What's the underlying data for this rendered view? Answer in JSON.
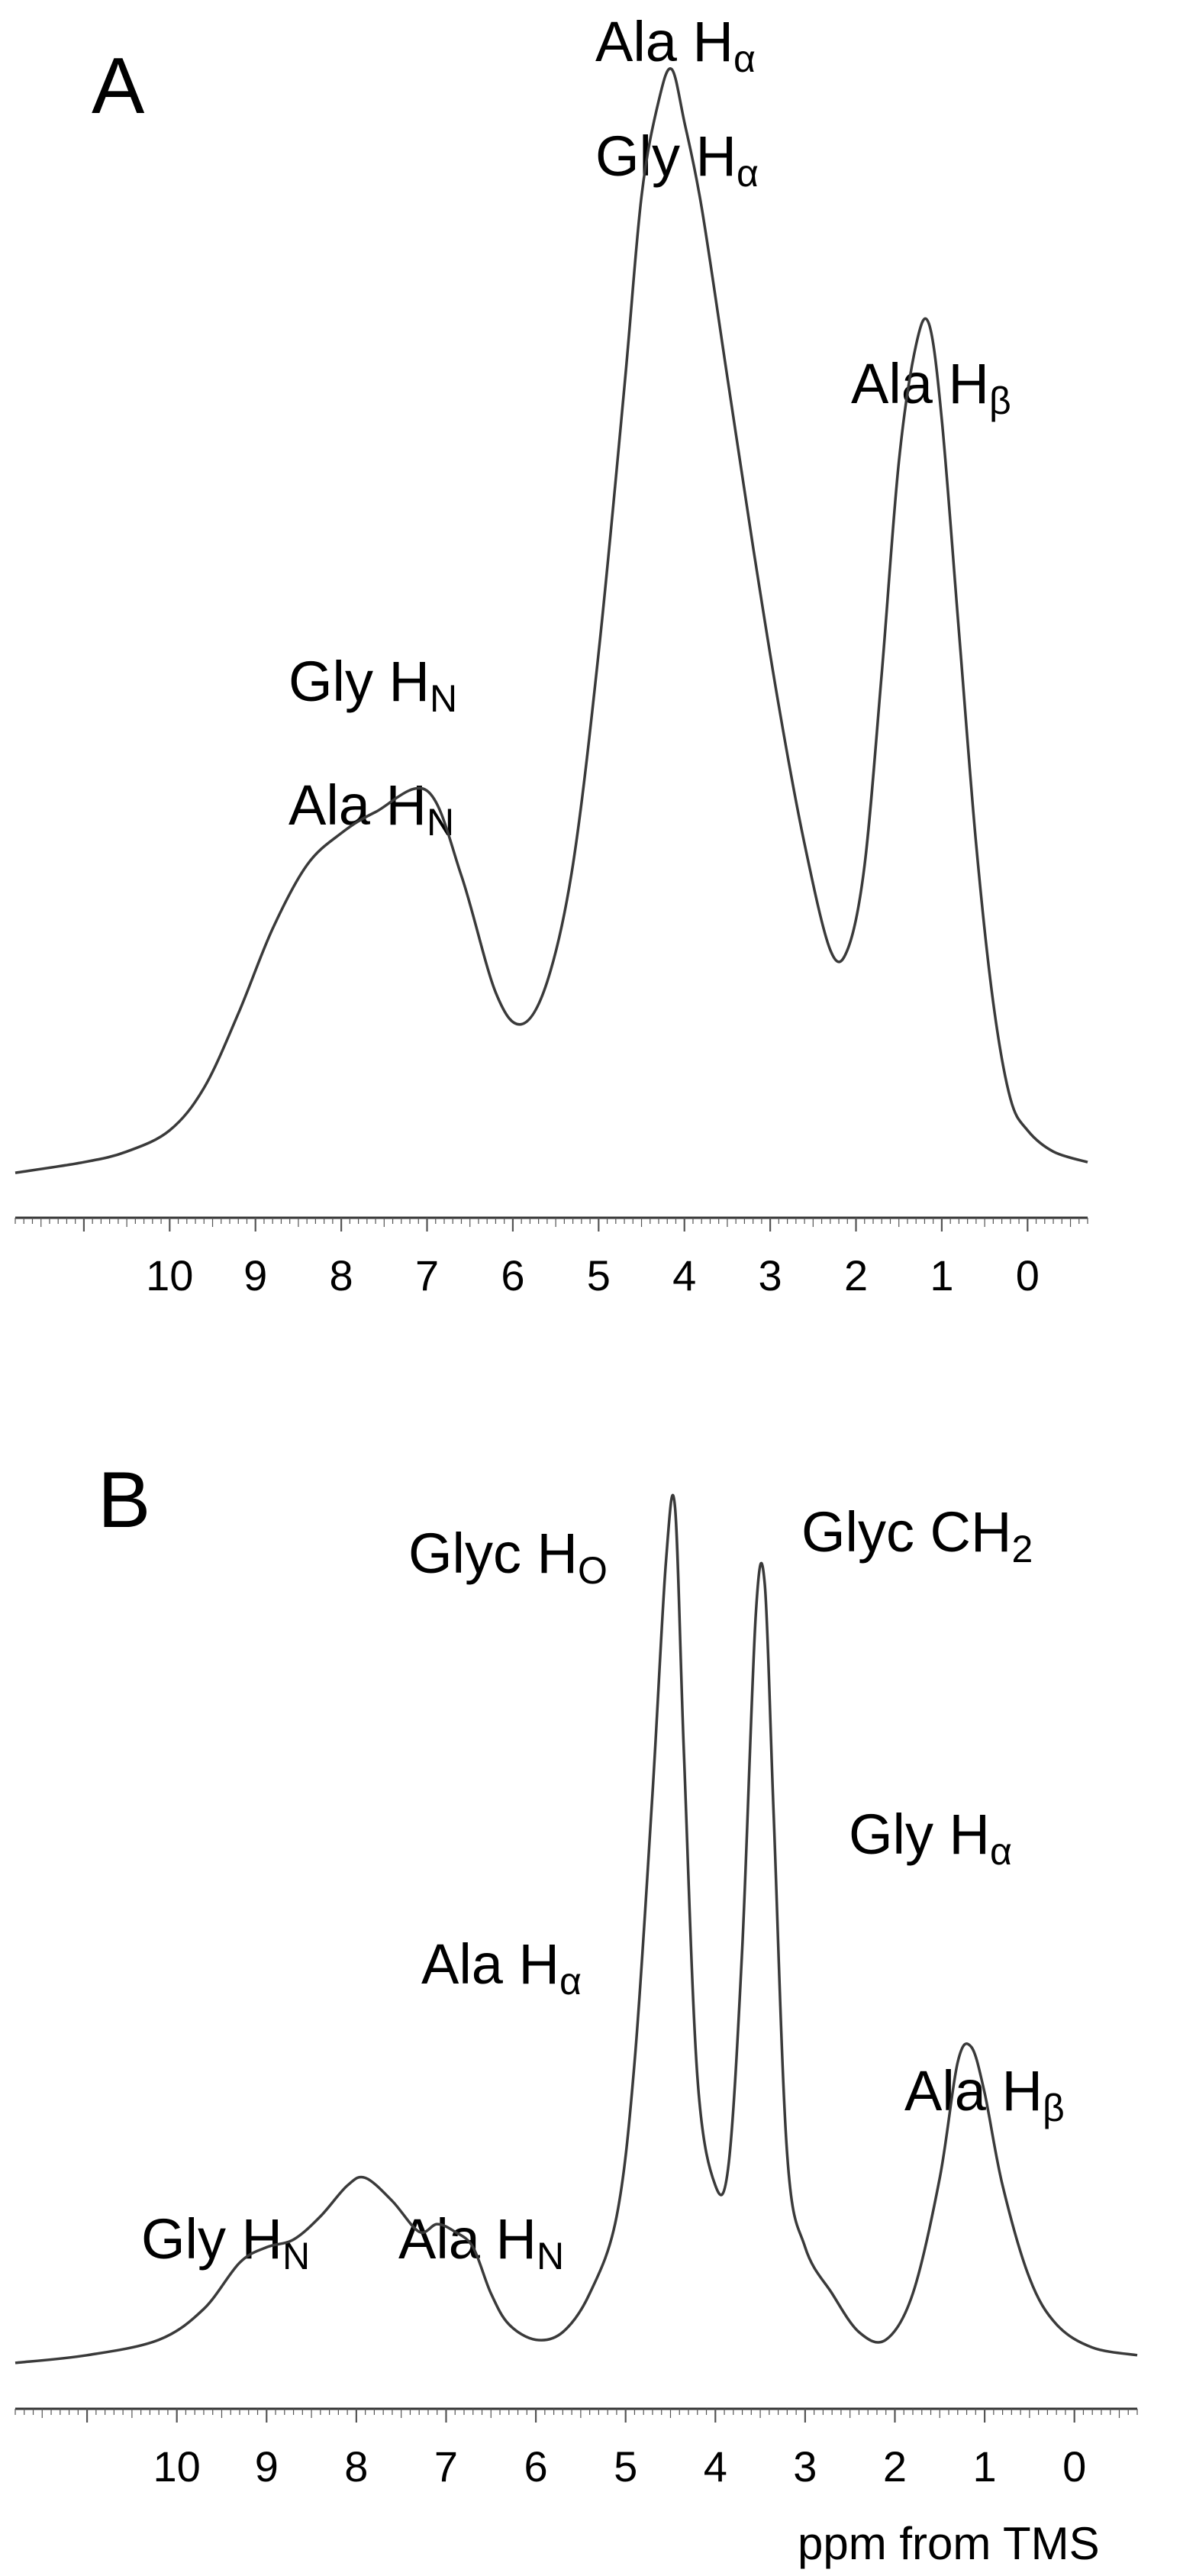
{
  "chart_data": [
    {
      "type": "line",
      "panel_label": "A",
      "xlabel": "",
      "xlim": [
        11.8,
        -0.7
      ],
      "x_reversed": true,
      "ticks": [
        10,
        9,
        8,
        7,
        6,
        5,
        4,
        3,
        2,
        1,
        0
      ],
      "tick_labels": [
        "10",
        "9",
        "8",
        "7",
        "6",
        "5",
        "4",
        "3",
        "2",
        "1",
        "0"
      ],
      "series": [
        {
          "x": [
            11.8,
            11.0,
            10.5,
            10.0,
            9.6,
            9.2,
            8.8,
            8.4,
            8.0,
            7.6,
            7.0,
            6.6,
            6.2,
            5.9,
            5.6,
            5.3,
            5.0,
            4.7,
            4.5,
            4.3,
            4.15,
            4.0,
            3.8,
            3.5,
            3.2,
            2.9,
            2.6,
            2.3,
            2.1,
            1.9,
            1.7,
            1.5,
            1.3,
            1.15,
            1.0,
            0.8,
            0.6,
            0.4,
            0.2,
            0.0,
            -0.3,
            -0.7
          ],
          "y": [
            0.01,
            0.02,
            0.03,
            0.05,
            0.09,
            0.16,
            0.24,
            0.3,
            0.33,
            0.35,
            0.37,
            0.29,
            0.18,
            0.15,
            0.19,
            0.3,
            0.5,
            0.75,
            0.93,
            1.02,
            1.05,
            1.0,
            0.92,
            0.76,
            0.6,
            0.45,
            0.32,
            0.22,
            0.22,
            0.3,
            0.48,
            0.68,
            0.79,
            0.81,
            0.72,
            0.52,
            0.32,
            0.17,
            0.08,
            0.05,
            0.03,
            0.02
          ]
        }
      ],
      "annotations": [
        {
          "text": "Ala H",
          "sub": "α"
        },
        {
          "text": "Gly H",
          "sub": "α"
        },
        {
          "text": "Ala H",
          "sub": "β"
        },
        {
          "text": "Gly H",
          "sub": "N"
        },
        {
          "text": "Ala H",
          "sub": "N"
        }
      ]
    },
    {
      "type": "line",
      "panel_label": "B",
      "xlabel": "ppm from TMS",
      "xlim": [
        11.8,
        -0.7
      ],
      "x_reversed": true,
      "ticks": [
        10,
        9,
        8,
        7,
        6,
        5,
        4,
        3,
        2,
        1,
        0
      ],
      "tick_labels": [
        "10",
        "9",
        "8",
        "7",
        "6",
        "5",
        "4",
        "3",
        "2",
        "1",
        "0"
      ],
      "series": [
        {
          "x": [
            11.8,
            11.0,
            10.2,
            9.7,
            9.3,
            9.0,
            8.7,
            8.4,
            8.1,
            7.9,
            7.6,
            7.3,
            7.1,
            6.9,
            6.7,
            6.5,
            6.3,
            6.0,
            5.7,
            5.4,
            5.1,
            4.9,
            4.7,
            4.55,
            4.45,
            4.35,
            4.2,
            4.0,
            3.85,
            3.7,
            3.55,
            3.45,
            3.35,
            3.2,
            3.0,
            2.7,
            2.4,
            2.1,
            1.8,
            1.5,
            1.3,
            1.15,
            1.0,
            0.8,
            0.5,
            0.2,
            -0.2,
            -0.7
          ],
          "y": [
            0.01,
            0.02,
            0.04,
            0.08,
            0.14,
            0.16,
            0.17,
            0.2,
            0.24,
            0.25,
            0.22,
            0.18,
            0.19,
            0.18,
            0.16,
            0.1,
            0.06,
            0.04,
            0.05,
            0.1,
            0.2,
            0.4,
            0.75,
            1.05,
            1.12,
            0.8,
            0.38,
            0.24,
            0.27,
            0.55,
            0.98,
            1.02,
            0.72,
            0.28,
            0.16,
            0.1,
            0.05,
            0.04,
            0.1,
            0.25,
            0.4,
            0.42,
            0.36,
            0.24,
            0.12,
            0.06,
            0.03,
            0.02
          ]
        }
      ],
      "annotations": [
        {
          "text": "Glyc H",
          "sub": "O"
        },
        {
          "text": "Glyc CH",
          "sub": "2"
        },
        {
          "text": "Gly H",
          "sub": "α"
        },
        {
          "text": "Ala H",
          "sub": "α"
        },
        {
          "text": "Ala H",
          "sub": "β"
        },
        {
          "text": "Gly H",
          "sub": "N"
        },
        {
          "text": "Ala H",
          "sub": "N"
        }
      ]
    }
  ]
}
